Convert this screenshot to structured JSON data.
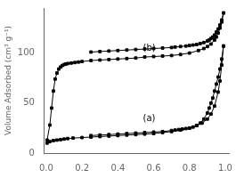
{
  "chart_data": {
    "type": "line",
    "ylabel": "Volume Adsorbed (cm³ g⁻¹)",
    "xlim": [
      -0.01,
      1.02
    ],
    "ylim": [
      0,
      145
    ],
    "xticks": [
      {
        "value": 0.0,
        "label": "0.0"
      },
      0.2,
      0.4,
      0.6,
      0.8,
      {
        "value": 1.0,
        "label": "1.0"
      }
    ],
    "yticks": [
      0,
      50,
      100
    ],
    "grid": false,
    "annotations": [
      {
        "text": "(b)",
        "x": 0.54,
        "y": 100
      },
      {
        "text": "(a)",
        "x": 0.54,
        "y": 30
      }
    ],
    "series": [
      {
        "color": "#000000",
        "marker": "square",
        "x": [
          0.005,
          0.02,
          0.03,
          0.04,
          0.05,
          0.06,
          0.07,
          0.08,
          0.09,
          0.1,
          0.11,
          0.12,
          0.14,
          0.16,
          0.18,
          0.2,
          0.25,
          0.3,
          0.35,
          0.4,
          0.45,
          0.5,
          0.55,
          0.6,
          0.65,
          0.7,
          0.75,
          0.8,
          0.85,
          0.88,
          0.9,
          0.92,
          0.94,
          0.95,
          0.96,
          0.97,
          0.98,
          0.99
        ],
        "values": [
          13.0,
          28.0,
          45.0,
          62.0,
          74.0,
          80.0,
          84.0,
          86.0,
          87.5,
          88.5,
          89.0,
          89.5,
          90.0,
          90.5,
          91.0,
          91.5,
          92.5,
          93.0,
          93.5,
          94.0,
          94.5,
          95.0,
          96.0,
          96.5,
          97.0,
          97.5,
          98.5,
          100.0,
          102.5,
          104.5,
          106.5,
          109.0,
          113.0,
          116.0,
          120.0,
          125.0,
          131.0,
          140.0
        ]
      },
      {
        "color": "#000000",
        "marker": "square",
        "x": [
          0.99,
          0.98,
          0.97,
          0.96,
          0.95,
          0.94,
          0.93,
          0.92,
          0.91,
          0.9,
          0.88,
          0.86,
          0.84,
          0.82,
          0.8,
          0.78,
          0.75,
          0.72,
          0.7,
          0.65,
          0.6,
          0.55,
          0.5,
          0.45,
          0.4,
          0.35,
          0.3,
          0.25
        ],
        "values": [
          140.0,
          133.0,
          128.0,
          124.0,
          121.0,
          118.0,
          116.0,
          114.5,
          113.0,
          112.0,
          110.5,
          109.5,
          108.5,
          108.0,
          107.5,
          107.0,
          106.5,
          106.0,
          105.5,
          105.0,
          104.5,
          104.0,
          103.5,
          103.0,
          102.5,
          102.0,
          101.5,
          101.0
        ]
      },
      {
        "color": "#000000",
        "marker": "square",
        "x": [
          0.005,
          0.02,
          0.04,
          0.06,
          0.08,
          0.1,
          0.12,
          0.15,
          0.2,
          0.25,
          0.3,
          0.35,
          0.4,
          0.45,
          0.5,
          0.55,
          0.6,
          0.65,
          0.7,
          0.75,
          0.8,
          0.84,
          0.87,
          0.9,
          0.92,
          0.94,
          0.96,
          0.97,
          0.98,
          0.99
        ],
        "values": [
          10.0,
          11.5,
          12.5,
          13.0,
          13.5,
          14.0,
          14.5,
          15.0,
          15.5,
          16.0,
          16.5,
          17.0,
          17.5,
          18.0,
          18.5,
          19.0,
          19.5,
          20.5,
          21.5,
          23.0,
          25.0,
          27.5,
          30.0,
          34.0,
          39.0,
          47.0,
          61.0,
          72.0,
          88.0,
          107.0
        ]
      },
      {
        "color": "#000000",
        "marker": "square",
        "x": [
          0.99,
          0.98,
          0.97,
          0.96,
          0.95,
          0.94,
          0.93,
          0.92,
          0.91,
          0.9,
          0.88,
          0.86,
          0.84,
          0.82,
          0.8,
          0.78,
          0.76,
          0.74,
          0.72,
          0.7,
          0.65,
          0.6,
          0.55,
          0.5,
          0.45,
          0.4,
          0.35,
          0.3,
          0.25
        ],
        "values": [
          107.0,
          94.0,
          84.0,
          76.0,
          69.0,
          62.0,
          55.0,
          50.0,
          45.0,
          40.0,
          34.0,
          30.0,
          27.5,
          26.0,
          25.0,
          24.5,
          24.0,
          23.5,
          23.0,
          22.5,
          21.5,
          21.0,
          20.5,
          20.0,
          19.5,
          19.0,
          18.5,
          18.0,
          17.5
        ]
      }
    ]
  }
}
